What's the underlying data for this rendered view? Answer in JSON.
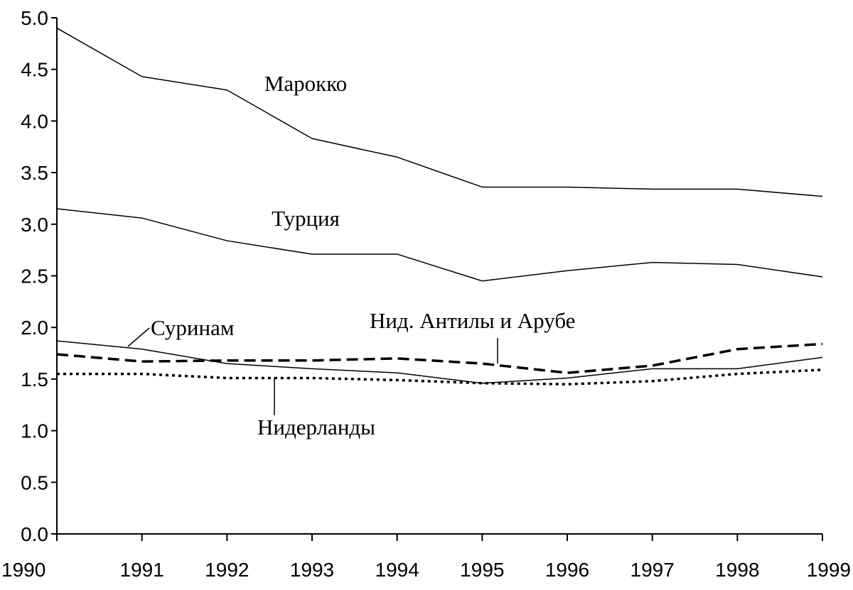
{
  "chart_data": {
    "type": "line",
    "x": [
      1990,
      1991,
      1992,
      1993,
      1994,
      1995,
      1996,
      1997,
      1998,
      1999
    ],
    "xlim": [
      1990,
      1999
    ],
    "xticks": [
      1990,
      1991,
      1992,
      1993,
      1994,
      1995,
      1996,
      1997,
      1998,
      1999
    ],
    "ylim": [
      0,
      5
    ],
    "yticks": [
      {
        "value": 0,
        "label": "0.0"
      },
      {
        "value": 0.5,
        "label": "0.5"
      },
      {
        "value": 1,
        "label": "1.0"
      },
      {
        "value": 1.5,
        "label": "1.5"
      },
      {
        "value": 2,
        "label": "2.0"
      },
      {
        "value": 2.5,
        "label": "2.5"
      },
      {
        "value": 3,
        "label": "3.0"
      },
      {
        "value": 3.5,
        "label": "3.5"
      },
      {
        "value": 4,
        "label": "4.0"
      },
      {
        "value": 4.5,
        "label": "4.5"
      },
      {
        "value": 5,
        "label": "5.0"
      }
    ],
    "grid": false,
    "series": [
      {
        "name": "Марокко",
        "color": "#000000",
        "style": "solid",
        "values": [
          4.9,
          4.43,
          4.3,
          3.83,
          3.65,
          3.36,
          3.36,
          3.34,
          3.34,
          3.27
        ]
      },
      {
        "name": "Турция",
        "color": "#000000",
        "style": "solid",
        "values": [
          3.15,
          3.06,
          2.84,
          2.71,
          2.71,
          2.45,
          2.55,
          2.63,
          2.61,
          2.49
        ]
      },
      {
        "name": "Суринам",
        "color": "#000000",
        "style": "solid",
        "values": [
          1.87,
          1.79,
          1.65,
          1.6,
          1.56,
          1.46,
          1.51,
          1.6,
          1.6,
          1.71
        ]
      },
      {
        "name": "Нид. Антилы и Арубе",
        "color": "#000000",
        "style": "dashed",
        "values": [
          1.74,
          1.67,
          1.68,
          1.68,
          1.7,
          1.65,
          1.56,
          1.63,
          1.79,
          1.84
        ]
      },
      {
        "name": "Нидерланды",
        "color": "#000000",
        "style": "dotted",
        "values": [
          1.55,
          1.55,
          1.51,
          1.51,
          1.49,
          1.46,
          1.45,
          1.48,
          1.55,
          1.59
        ]
      }
    ]
  }
}
